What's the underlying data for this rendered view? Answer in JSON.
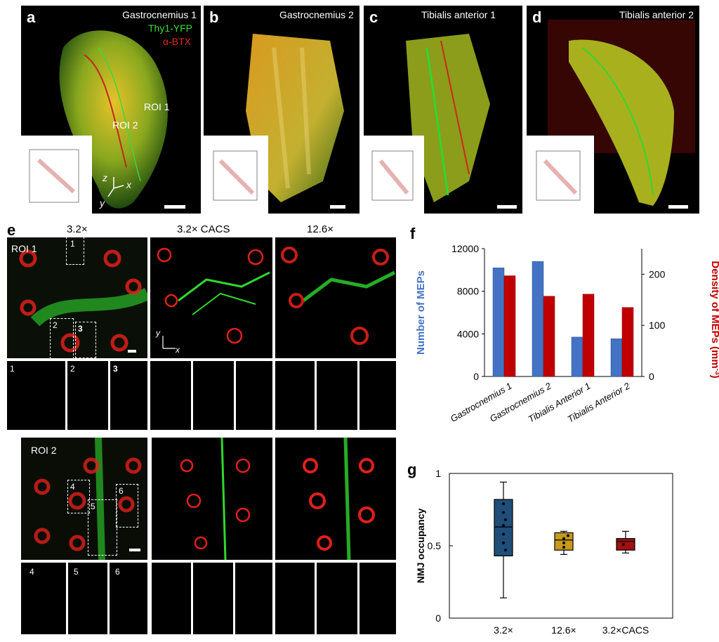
{
  "panels": {
    "a": {
      "label": "a",
      "title": "Gastrocnemius 1",
      "legend": [
        "Thy1-YFP",
        "α-BTX"
      ],
      "roi1": "ROI 1",
      "roi2": "ROI 2",
      "axes": {
        "z": "z",
        "x": "x",
        "y": "y"
      }
    },
    "b": {
      "label": "b",
      "title": "Gastrocnemius 2"
    },
    "c": {
      "label": "c",
      "title": "Tibialis anterior 1"
    },
    "d": {
      "label": "d",
      "title": "Tibialis anterior 2"
    }
  },
  "panel_e": {
    "label": "e",
    "columns": [
      "3.2×",
      "3.2× CACS",
      "12.6×"
    ],
    "roi1": "ROI 1",
    "roi2": "ROI 2",
    "axes": {
      "y": "y",
      "x": "x"
    },
    "roi1_boxes": [
      "1",
      "2",
      "3"
    ],
    "roi2_boxes": [
      "4",
      "5",
      "6"
    ]
  },
  "colors": {
    "green": "#2fd82f",
    "red": "#e0201a",
    "blue_bar": "#4472c4",
    "red_bar": "#c00000",
    "box_blue": "#1f4e79",
    "box_gold": "#c79a1e",
    "box_red": "#a01010"
  },
  "chart_data": [
    {
      "panel": "f",
      "type": "bar",
      "categories": [
        "Gastrocnemius 1",
        "Gastrocnemius 2",
        "Tibialis Anterior 1",
        "Tibialis Anterior 2"
      ],
      "series": [
        {
          "name": "Number of MEPs",
          "axis": "left",
          "values": [
            10200,
            10800,
            3700,
            3550
          ]
        },
        {
          "name": "Density of MEPs (mm-3)",
          "axis": "right",
          "values": [
            197,
            157,
            161,
            135
          ]
        }
      ],
      "ylabel_left": "Number of MEPs",
      "ylabel_right": "Density of MEPs (mm",
      "ylabel_right_sup": "-3",
      "ylabel_right_tail": ")",
      "ylim_left": [
        0,
        12000
      ],
      "ylim_right": [
        0,
        250
      ],
      "yticks_left": [
        "0",
        "4000",
        "8000",
        "12000"
      ],
      "yticks_right": [
        "0",
        "100",
        "200"
      ]
    },
    {
      "panel": "g",
      "type": "box",
      "categories": [
        "3.2×",
        "12.6×",
        "3.2×CACS"
      ],
      "ylabel": "NMJ occupancy",
      "ylim": [
        0,
        1
      ],
      "yticks": [
        "0",
        "0.5",
        "1"
      ],
      "boxes": [
        {
          "min": 0.14,
          "q1": 0.43,
          "median": 0.63,
          "q3": 0.82,
          "max": 0.94,
          "points": [
            0.79,
            0.73,
            0.68,
            0.64,
            0.58,
            0.52,
            0.47
          ]
        },
        {
          "min": 0.44,
          "q1": 0.47,
          "median": 0.54,
          "q3": 0.59,
          "max": 0.6,
          "points": [
            0.57,
            0.55,
            0.52,
            0.49
          ]
        },
        {
          "min": 0.45,
          "q1": 0.47,
          "median": 0.53,
          "q3": 0.55,
          "max": 0.6,
          "points": [
            0.51
          ]
        }
      ]
    }
  ]
}
